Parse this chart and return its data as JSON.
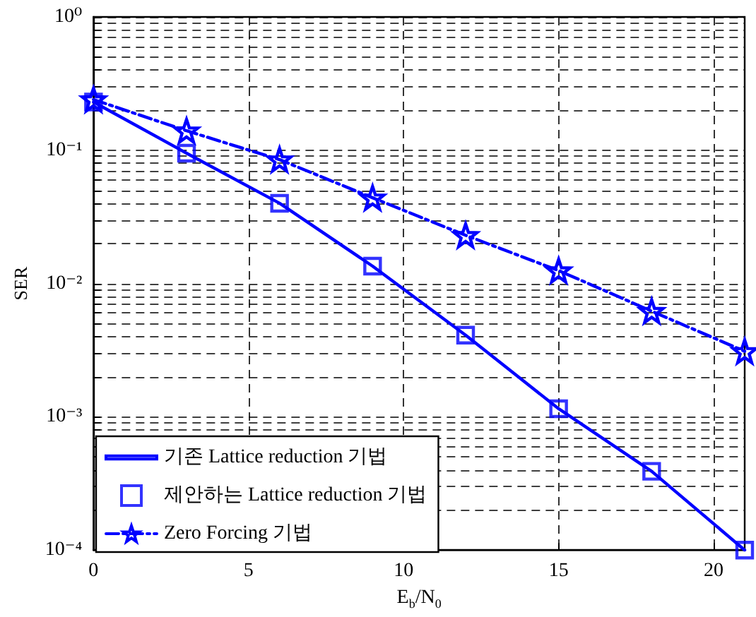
{
  "chart_data": {
    "type": "line",
    "xlabel": "E$_{b}$/N$_{0}$",
    "ylabel": "SER",
    "x": [
      0,
      3,
      6,
      9,
      12,
      15,
      18,
      21
    ],
    "series": [
      {
        "name": "기존 Lattice reduction 기법",
        "color": "#0000ff",
        "marker": "none",
        "line_style": "solid",
        "values": [
          0.23,
          0.095,
          0.04,
          0.0135,
          0.0041,
          0.00115,
          0.00039,
          0.0001
        ]
      },
      {
        "name": "제안하는 Lattice reduction 기법",
        "color": "#0000ff",
        "type": "scatter",
        "marker": "square",
        "values": [
          0.23,
          0.095,
          0.04,
          0.0135,
          0.0041,
          0.00115,
          0.00039,
          0.0001
        ]
      },
      {
        "name": "Zero Forcing 기법",
        "color": "#0000ff",
        "marker": "star",
        "line_style": "dashed",
        "values": [
          0.24,
          0.14,
          0.085,
          0.044,
          0.023,
          0.0125,
          0.0062,
          0.0031
        ]
      }
    ],
    "xlim": [
      0,
      21
    ],
    "xticks": [
      0,
      5,
      10,
      15,
      20
    ],
    "ylim": [
      0.0001,
      1
    ],
    "yticks": [
      {
        "value": 0.0001,
        "label": "10⁻⁴"
      },
      {
        "value": 0.001,
        "label": "10⁻³"
      },
      {
        "value": 0.01,
        "label": "10⁻²"
      },
      {
        "value": 0.1,
        "label": "10⁻¹"
      },
      {
        "value": 1,
        "label": "10⁰"
      }
    ],
    "log": "y",
    "grid": true,
    "legend": "bottom left"
  }
}
